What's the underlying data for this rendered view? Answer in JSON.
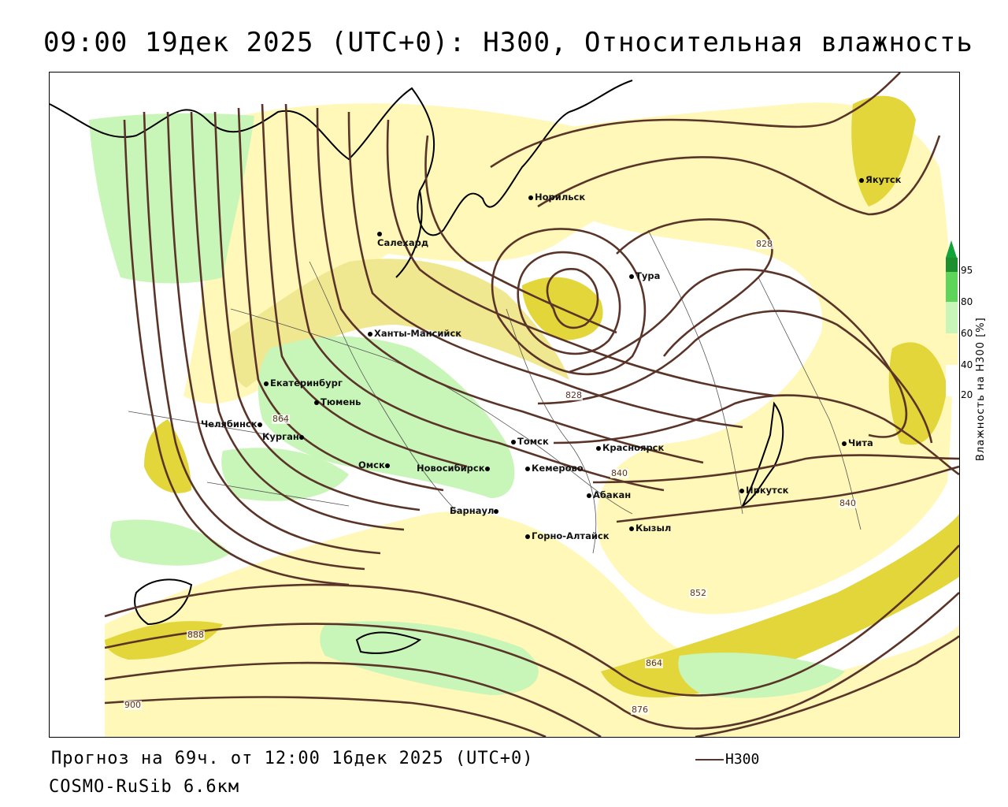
{
  "header": {
    "title": "09:00 19дек 2025 (UTC+0): H300, Относительная влажность"
  },
  "footer": {
    "forecast": "Прогноз на 69ч. от 12:00 16дек 2025 (UTC+0)",
    "model": "COSMO-RuSib 6.6км",
    "legend_h300": "H300"
  },
  "colorbar": {
    "title": "Влажность на H300 [%]",
    "ticks": [
      "95",
      "80",
      "60",
      "40",
      "20"
    ],
    "colors": {
      "c20": "#ffffff",
      "c40": "#fff8b8",
      "c60": "#c8f5b8",
      "c80": "#5fd45a",
      "c95": "#1e8f2e",
      "top": "#14a33a"
    }
  },
  "colors": {
    "contour": "#5a3428",
    "humid_light": "#fff8b8",
    "humid_mid": "#f0e890",
    "humid_dark": "#e2d63a",
    "green_light": "#c8f5b8",
    "coast": "#000000",
    "border": "#555555"
  },
  "cities": [
    {
      "name": "Норильск"
    },
    {
      "name": "Якутск"
    },
    {
      "name": "Салехард"
    },
    {
      "name": "Тура"
    },
    {
      "name": "Ханты-Мансийск"
    },
    {
      "name": "Екатеринбург"
    },
    {
      "name": "Тюмень"
    },
    {
      "name": "Челябинск"
    },
    {
      "name": "Курган"
    },
    {
      "name": "Омск"
    },
    {
      "name": "Новосибирск"
    },
    {
      "name": "Томск"
    },
    {
      "name": "Кемерово"
    },
    {
      "name": "Красноярск"
    },
    {
      "name": "Абакан"
    },
    {
      "name": "Барнаул"
    },
    {
      "name": "Горно-Алтайск"
    },
    {
      "name": "Кызыл"
    },
    {
      "name": "Иркутск"
    },
    {
      "name": "Чита"
    }
  ],
  "contour_labels": [
    "828",
    "828",
    "864",
    "840",
    "840",
    "852",
    "888",
    "864",
    "876",
    "900"
  ]
}
